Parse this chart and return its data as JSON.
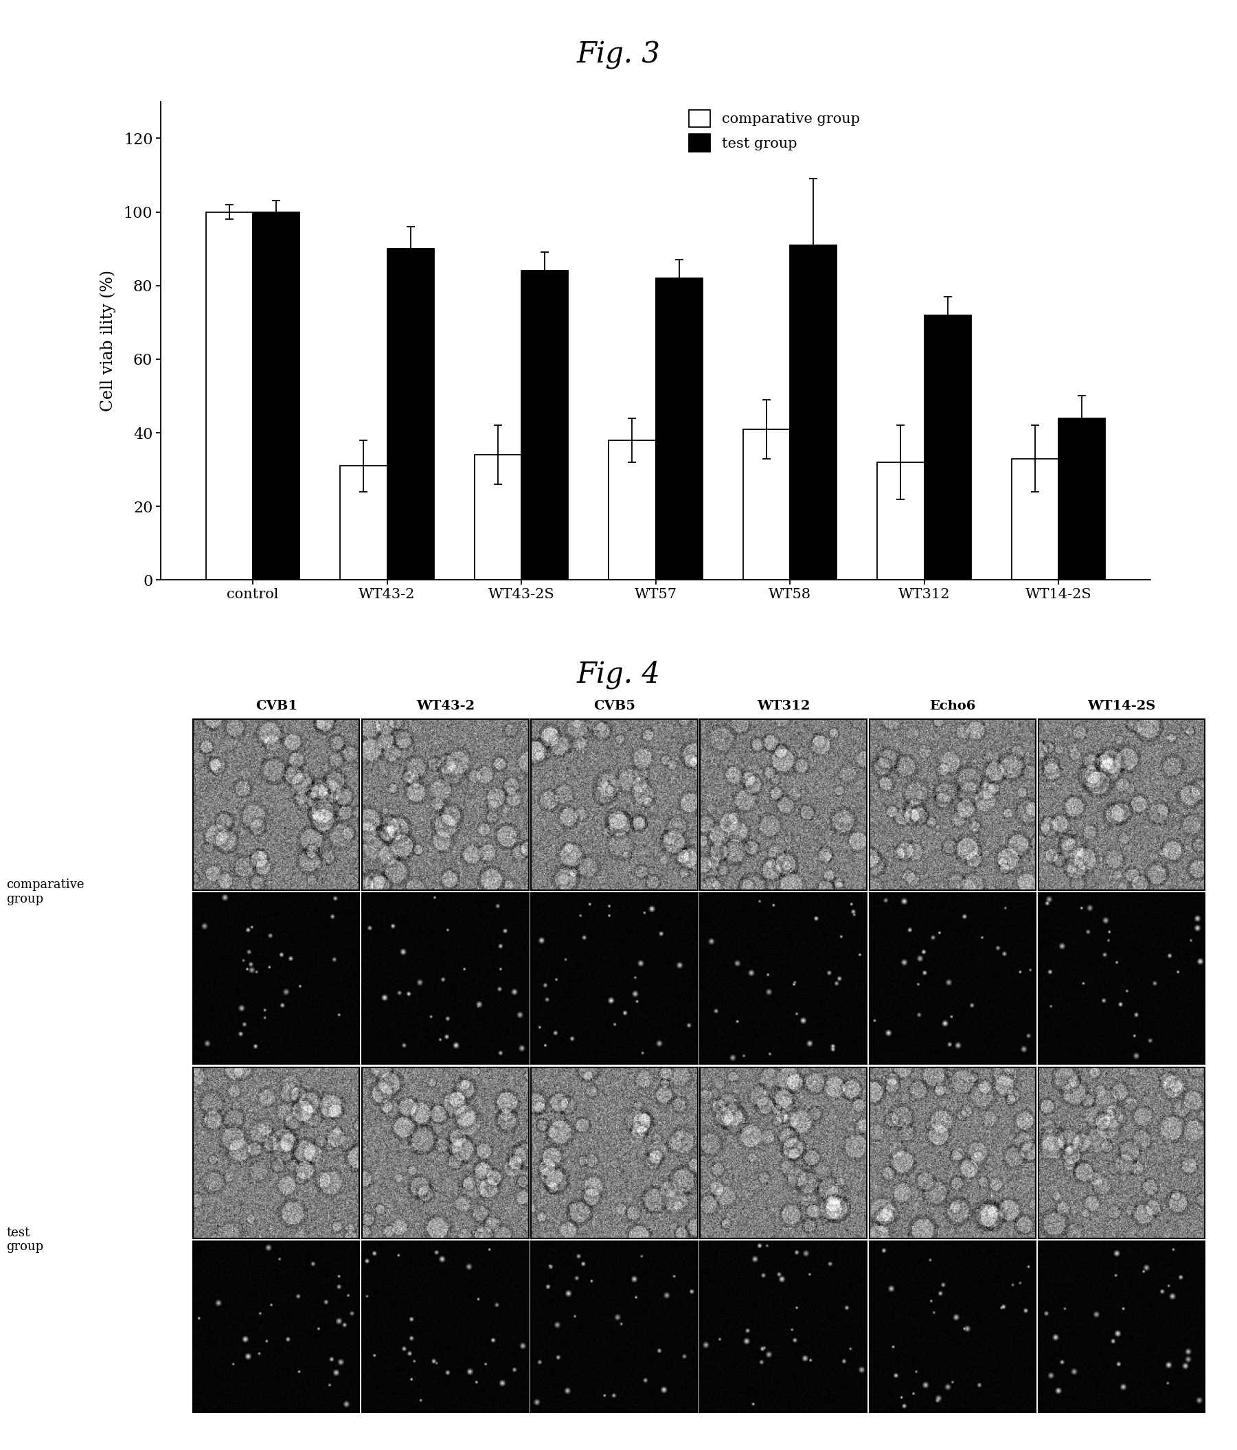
{
  "fig3_title": "Fig. 3",
  "fig4_title": "Fig. 4",
  "categories": [
    "control",
    "WT43-2",
    "WT43-2S",
    "WT57",
    "WT58",
    "WT312",
    "WT14-2S"
  ],
  "comparative_values": [
    100,
    31,
    34,
    38,
    41,
    32,
    33
  ],
  "test_values": [
    100,
    90,
    84,
    82,
    91,
    72,
    44
  ],
  "comparative_errors": [
    2,
    7,
    8,
    6,
    8,
    10,
    9
  ],
  "test_errors": [
    3,
    6,
    5,
    5,
    18,
    5,
    6
  ],
  "ylabel": "Cell viab ility (%)",
  "ylim": [
    0,
    130
  ],
  "yticks": [
    0,
    20,
    40,
    60,
    80,
    100,
    120
  ],
  "legend_labels": [
    "comparative group",
    "test group"
  ],
  "comparative_color": "white",
  "test_color": "black",
  "bar_edgecolor": "black",
  "bar_width": 0.35,
  "fig4_col_labels": [
    "CVB1",
    "WT43-2",
    "CVB5",
    "WT312",
    "Echo6",
    "WT14-2S"
  ],
  "background_color": "white"
}
